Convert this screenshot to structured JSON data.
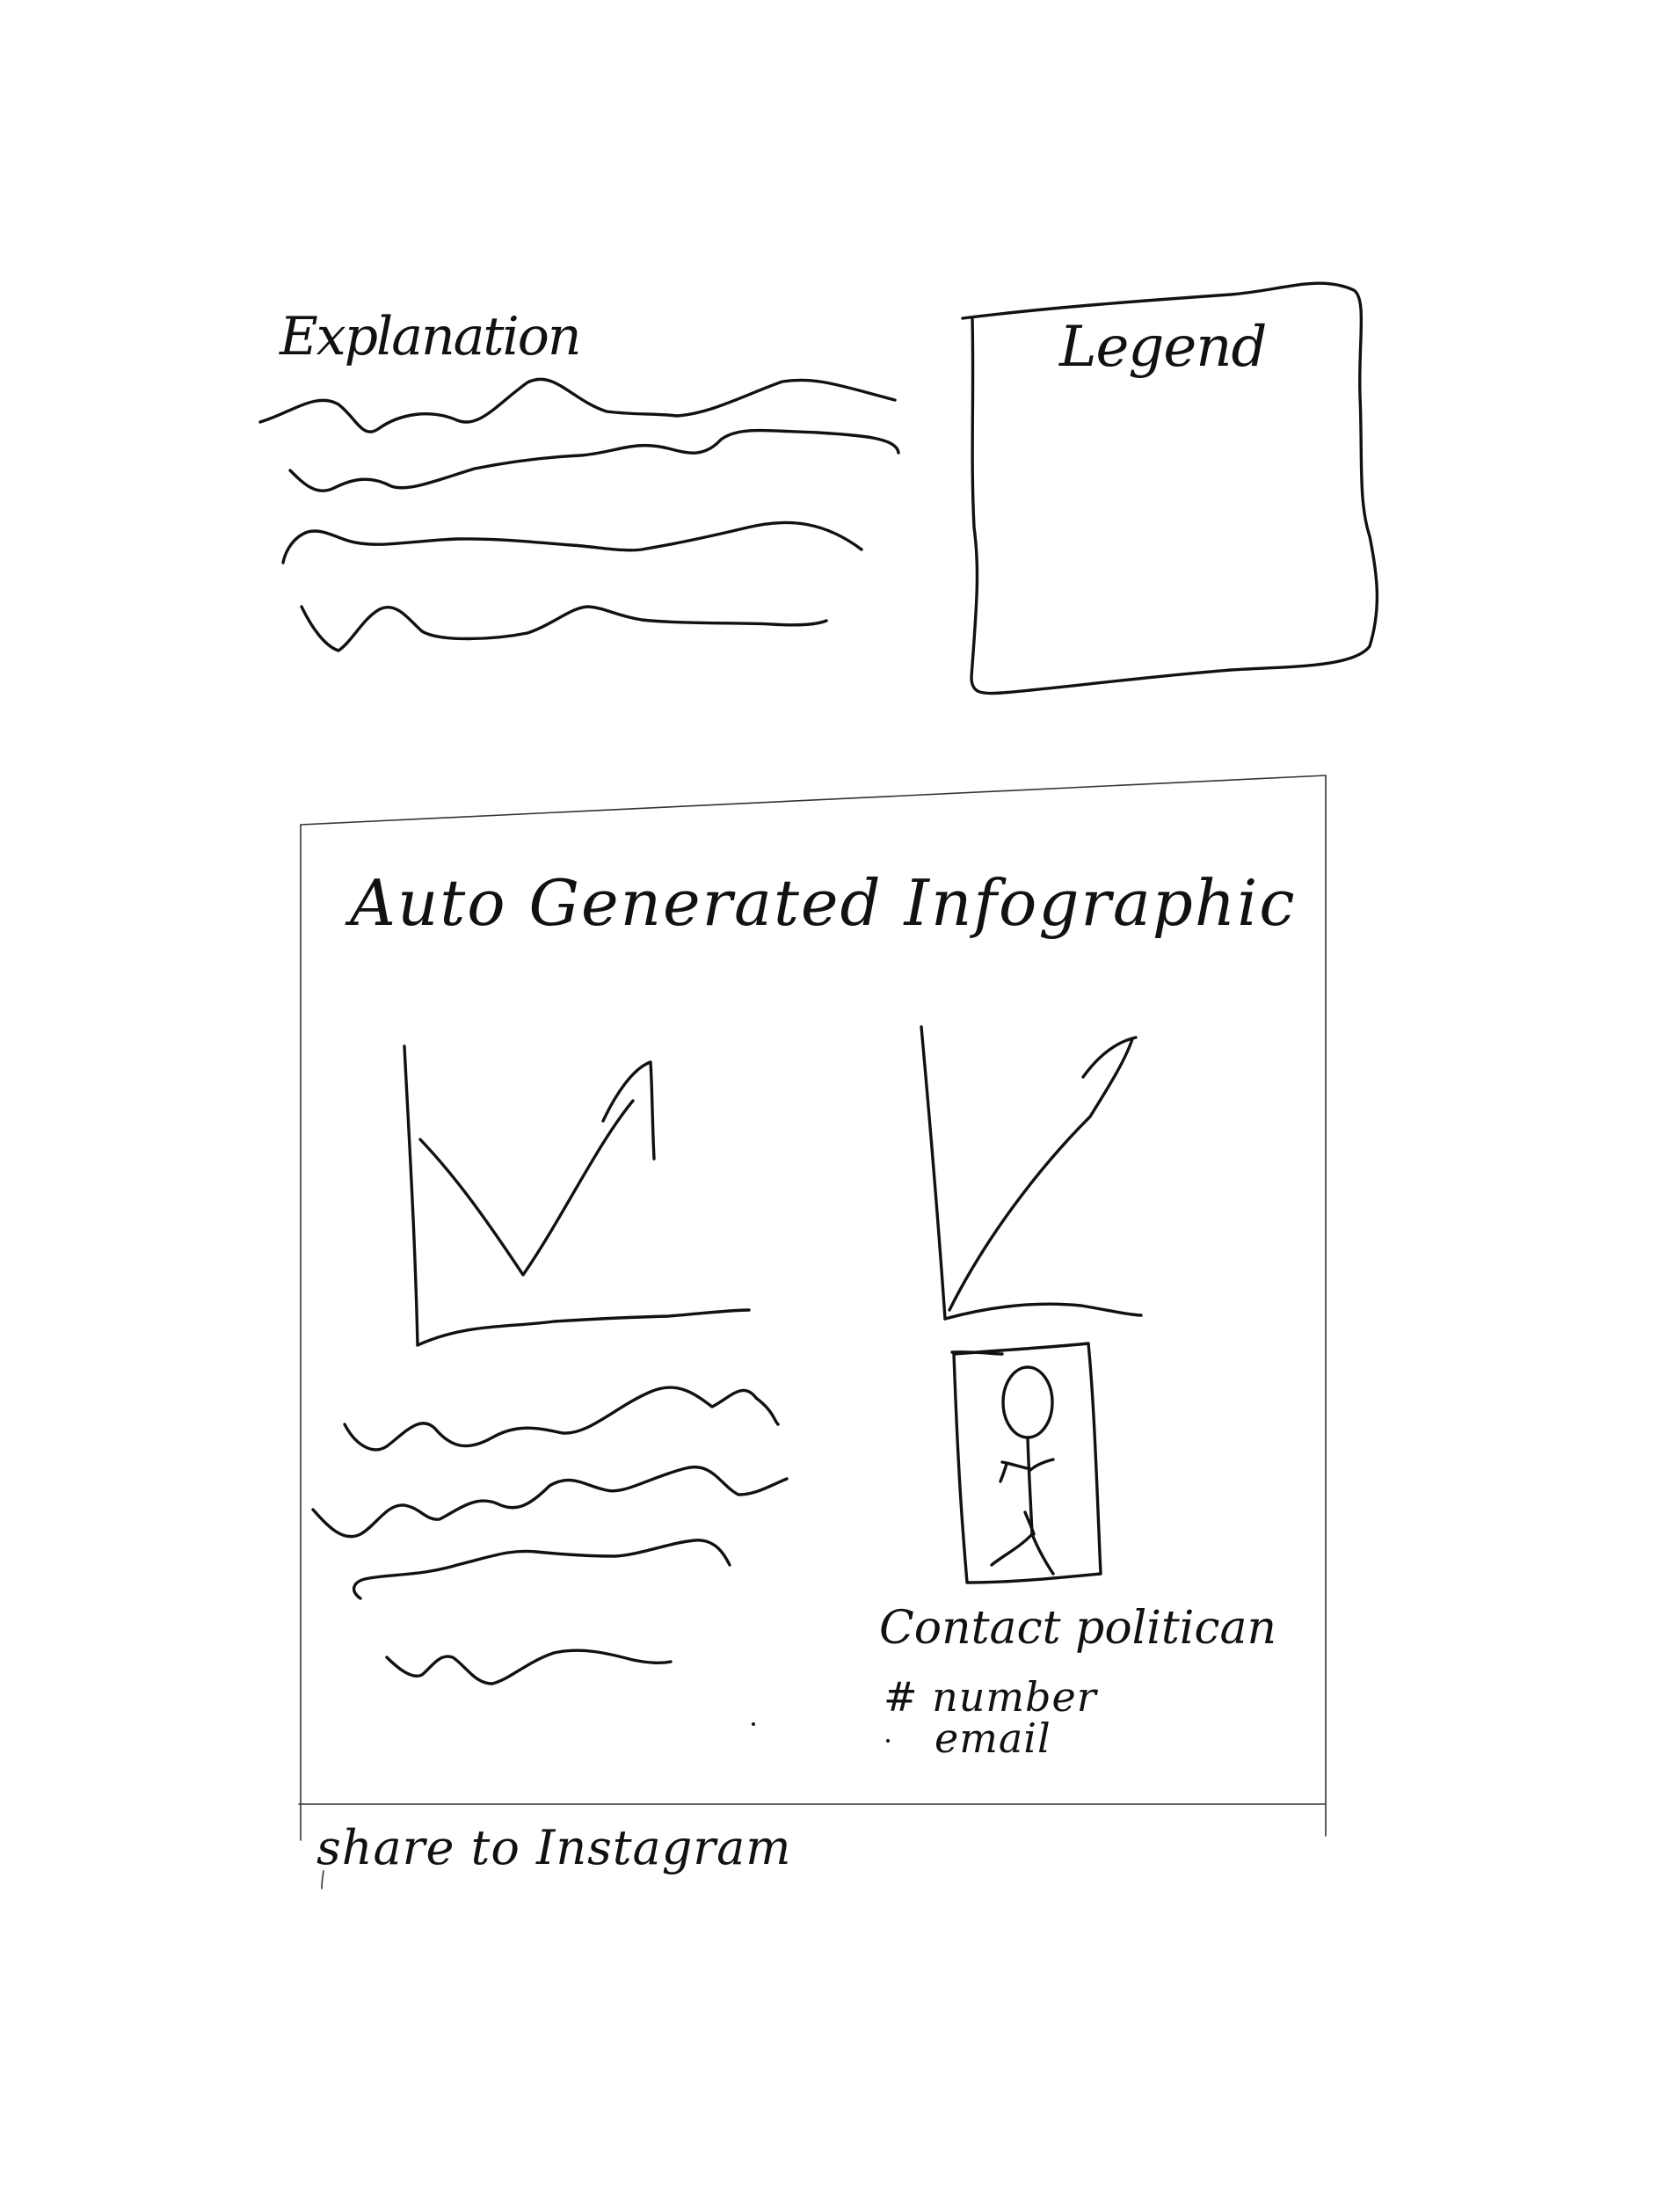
{
  "explanation": {
    "label": "Explanation"
  },
  "legend": {
    "title": "Legend"
  },
  "infographic": {
    "title": "Auto Generated Infographic",
    "contact": {
      "label": "Contact politican",
      "number_label": "# number",
      "email_label": "email"
    }
  },
  "share": {
    "label": "share to Instagram"
  }
}
